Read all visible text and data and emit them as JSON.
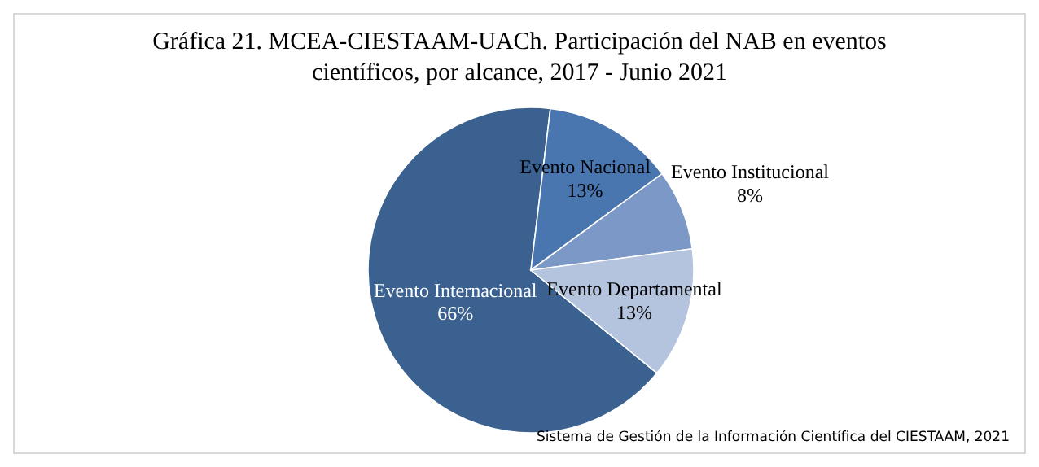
{
  "chart_data": {
    "type": "pie",
    "title": "Gráfica 21. MCEA-CIESTAAM-UACh. Participación del NAB en eventos científicos, por alcance, 2017 - Junio 2021",
    "categories": [
      "Evento Internacional",
      "Evento Nacional",
      "Evento Institucional",
      "Evento Departamental"
    ],
    "values": [
      66,
      13,
      8,
      13
    ],
    "value_labels": [
      "66%",
      "13%",
      "8%",
      "13%"
    ],
    "colors": [
      "#3a6190",
      "#4a76b0",
      "#7b98c6",
      "#b4c3de"
    ],
    "annotations": [
      "Sistema de Gestión de la Información Científica del CIESTAAM, 2021"
    ]
  }
}
